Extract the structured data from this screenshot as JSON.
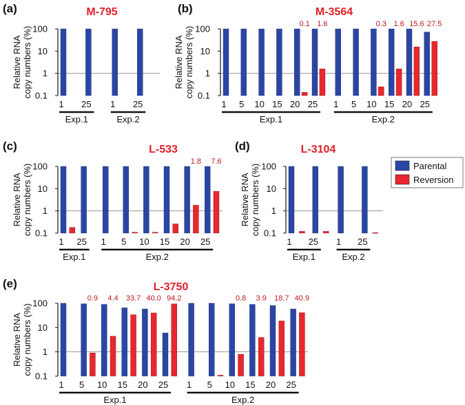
{
  "colors": {
    "parental": "#2a46a5",
    "reversion": "#e8282e",
    "title": "#e0202a",
    "datalabel": "#c0181e",
    "refline": "#9a9a9a"
  },
  "y_axis": {
    "label_line1": "Relative RNA",
    "label_line2": "copy numbers (%)",
    "scale": "log",
    "ticks": [
      "100",
      "10",
      "1",
      "0.1"
    ],
    "tick_values": [
      100,
      10,
      1,
      0.1
    ],
    "ylim": [
      0.1,
      100
    ]
  },
  "legend": {
    "items": [
      {
        "name": "Parental",
        "color": "#2a46a5"
      },
      {
        "name": "Reversion",
        "color": "#e8282e"
      }
    ]
  },
  "chart_data": [
    {
      "panel": "(a)",
      "title": "M-795",
      "type": "bar",
      "categories": [
        "1",
        "25",
        "1",
        "25"
      ],
      "groups": [
        {
          "label": "Exp.1",
          "from": 0,
          "to": 1
        },
        {
          "label": "Exp.2",
          "from": 2,
          "to": 3
        }
      ],
      "series": [
        {
          "name": "Parental",
          "values": [
            100,
            100,
            100,
            100
          ]
        },
        {
          "name": "Reversion",
          "values": [
            null,
            null,
            null,
            null
          ]
        }
      ],
      "data_labels": [
        "",
        "",
        "",
        ""
      ]
    },
    {
      "panel": "(b)",
      "title": "M-3564",
      "type": "bar",
      "categories": [
        "1",
        "5",
        "10",
        "15",
        "20",
        "25",
        "1",
        "5",
        "10",
        "15",
        "20",
        "25"
      ],
      "groups": [
        {
          "label": "Exp.1",
          "from": 0,
          "to": 5
        },
        {
          "label": "Exp.2",
          "from": 6,
          "to": 11
        }
      ],
      "series": [
        {
          "name": "Parental",
          "values": [
            100,
            100,
            100,
            100,
            100,
            100,
            100,
            100,
            100,
            100,
            100,
            72
          ]
        },
        {
          "name": "Reversion",
          "values": [
            null,
            null,
            null,
            null,
            0.14,
            1.6,
            null,
            null,
            0.25,
            1.6,
            15.6,
            27.5
          ]
        }
      ],
      "data_labels": [
        "",
        "",
        "",
        "",
        "0.1",
        "1.6",
        "",
        "",
        "0.3",
        "1.6",
        "15.6",
        "27.5"
      ]
    },
    {
      "panel": "(c)",
      "title": "L-533",
      "type": "bar",
      "categories": [
        "1",
        "25",
        "1",
        "5",
        "10",
        "15",
        "20",
        "25"
      ],
      "groups": [
        {
          "label": "Exp.1",
          "from": 0,
          "to": 1
        },
        {
          "label": "Exp.2",
          "from": 2,
          "to": 7
        }
      ],
      "series": [
        {
          "name": "Parental",
          "values": [
            100,
            100,
            100,
            100,
            100,
            100,
            100,
            100
          ]
        },
        {
          "name": "Reversion",
          "values": [
            0.18,
            null,
            null,
            0.11,
            0.11,
            0.26,
            1.8,
            7.6
          ]
        }
      ],
      "data_labels": [
        "",
        "",
        "",
        "",
        "",
        "",
        "1.8",
        "7.6"
      ]
    },
    {
      "panel": "(d)",
      "title": "L-3104",
      "type": "bar",
      "categories": [
        "1",
        "25",
        "1",
        "25"
      ],
      "groups": [
        {
          "label": "Exp.1",
          "from": 0,
          "to": 1
        },
        {
          "label": "Exp.2",
          "from": 2,
          "to": 3
        }
      ],
      "series": [
        {
          "name": "Parental",
          "values": [
            100,
            100,
            100,
            100
          ]
        },
        {
          "name": "Reversion",
          "values": [
            0.12,
            0.12,
            null,
            0.105
          ]
        }
      ],
      "data_labels": [
        "",
        "",
        "",
        ""
      ]
    },
    {
      "panel": "(e)",
      "title": "L-3750",
      "type": "bar",
      "categories": [
        "1",
        "5",
        "10",
        "15",
        "20",
        "25",
        "1",
        "5",
        "10",
        "15",
        "20",
        "25"
      ],
      "groups": [
        {
          "label": "Exp.1",
          "from": 0,
          "to": 5
        },
        {
          "label": "Exp.2",
          "from": 6,
          "to": 11
        }
      ],
      "series": [
        {
          "name": "Parental",
          "values": [
            100,
            95,
            90,
            65,
            58,
            6,
            100,
            100,
            95,
            90,
            80,
            58
          ]
        },
        {
          "name": "Reversion",
          "values": [
            null,
            0.9,
            4.4,
            33.7,
            40.0,
            94.2,
            null,
            0.11,
            0.8,
            3.9,
            18.7,
            40.9
          ]
        }
      ],
      "data_labels": [
        "",
        "0.9",
        "4.4",
        "33.7",
        "40.0",
        "94.2",
        "",
        "",
        "0.8",
        "3.9",
        "18.7",
        "40.9"
      ]
    }
  ]
}
